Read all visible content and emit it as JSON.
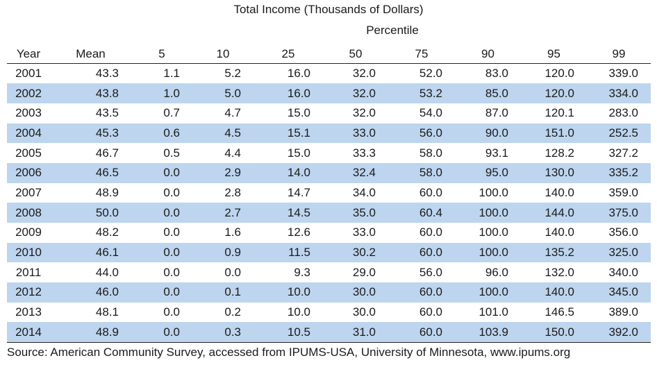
{
  "title": "Total Income (Thousands of Dollars)",
  "group_label": "Percentile",
  "columns": [
    "Year",
    "Mean",
    "5",
    "10",
    "25",
    "50",
    "75",
    "90",
    "95",
    "99"
  ],
  "rows": [
    [
      "2001",
      "43.3",
      "1.1",
      "5.2",
      "16.0",
      "32.0",
      "52.0",
      "83.0",
      "120.0",
      "339.0"
    ],
    [
      "2002",
      "43.8",
      "1.0",
      "5.0",
      "16.0",
      "32.0",
      "53.2",
      "85.0",
      "120.0",
      "334.0"
    ],
    [
      "2003",
      "43.5",
      "0.7",
      "4.7",
      "15.0",
      "32.0",
      "54.0",
      "87.0",
      "120.1",
      "283.0"
    ],
    [
      "2004",
      "45.3",
      "0.6",
      "4.5",
      "15.1",
      "33.0",
      "56.0",
      "90.0",
      "151.0",
      "252.5"
    ],
    [
      "2005",
      "46.7",
      "0.5",
      "4.4",
      "15.0",
      "33.3",
      "58.0",
      "93.1",
      "128.2",
      "327.2"
    ],
    [
      "2006",
      "46.5",
      "0.0",
      "2.9",
      "14.0",
      "32.4",
      "58.0",
      "95.0",
      "130.0",
      "335.2"
    ],
    [
      "2007",
      "48.9",
      "0.0",
      "2.8",
      "14.7",
      "34.0",
      "60.0",
      "100.0",
      "140.0",
      "359.0"
    ],
    [
      "2008",
      "50.0",
      "0.0",
      "2.7",
      "14.5",
      "35.0",
      "60.4",
      "100.0",
      "144.0",
      "375.0"
    ],
    [
      "2009",
      "48.2",
      "0.0",
      "1.6",
      "12.6",
      "33.0",
      "60.0",
      "100.0",
      "140.0",
      "356.0"
    ],
    [
      "2010",
      "46.1",
      "0.0",
      "0.9",
      "11.5",
      "30.2",
      "60.0",
      "100.0",
      "135.2",
      "325.0"
    ],
    [
      "2011",
      "44.0",
      "0.0",
      "0.0",
      "9.3",
      "29.0",
      "56.0",
      "96.0",
      "132.0",
      "340.0"
    ],
    [
      "2012",
      "46.0",
      "0.0",
      "0.1",
      "10.0",
      "30.0",
      "60.0",
      "100.0",
      "140.0",
      "345.0"
    ],
    [
      "2013",
      "48.1",
      "0.0",
      "0.2",
      "10.0",
      "30.0",
      "60.0",
      "101.0",
      "146.5",
      "389.0"
    ],
    [
      "2014",
      "48.9",
      "0.0",
      "0.3",
      "10.5",
      "31.0",
      "60.0",
      "103.9",
      "150.0",
      "392.0"
    ]
  ],
  "source": "Source: American Community Survey, accessed from IPUMS-USA, University of Minnesota, www.ipums.org",
  "colors": {
    "band": "#bdd5ee",
    "rule": "#222222"
  }
}
